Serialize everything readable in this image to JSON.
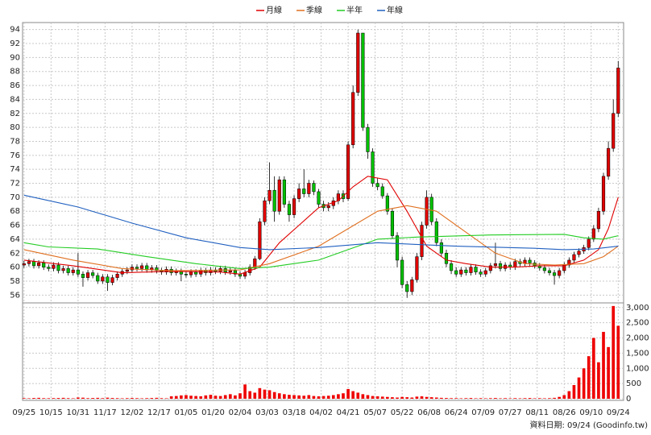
{
  "chart_data": {
    "type": "candlestick",
    "xlim": [
      -0.3,
      122.1
    ],
    "xticks": [
      {
        "value": 0,
        "label": "09/25"
      },
      {
        "value": 5.5,
        "label": "10/15"
      },
      {
        "value": 11,
        "label": "10/31"
      },
      {
        "value": 16.5,
        "label": "11/17"
      },
      {
        "value": 22,
        "label": "12/02"
      },
      {
        "value": 27.5,
        "label": "12/17"
      },
      {
        "value": 33,
        "label": "01/05"
      },
      {
        "value": 38.5,
        "label": "01/20"
      },
      {
        "value": 44,
        "label": "02/04"
      },
      {
        "value": 49.5,
        "label": "03/03"
      },
      {
        "value": 55,
        "label": "03/18"
      },
      {
        "value": 60.5,
        "label": "04/02"
      },
      {
        "value": 66,
        "label": "04/21"
      },
      {
        "value": 71.5,
        "label": "05/07"
      },
      {
        "value": 77,
        "label": "05/22"
      },
      {
        "value": 82.5,
        "label": "06/08"
      },
      {
        "value": 88,
        "label": "06/24"
      },
      {
        "value": 93.5,
        "label": "07/09"
      },
      {
        "value": 99,
        "label": "07/27"
      },
      {
        "value": 104.5,
        "label": "08/11"
      },
      {
        "value": 110,
        "label": "08/26"
      },
      {
        "value": 115.5,
        "label": "09/10"
      },
      {
        "value": 121,
        "label": "09/24"
      }
    ],
    "ylim": [
      55,
      95
    ],
    "yticks": [
      56,
      58,
      60,
      62,
      64,
      66,
      68,
      70,
      72,
      74,
      76,
      78,
      80,
      82,
      84,
      86,
      88,
      90,
      92,
      94
    ],
    "y2lim": [
      0,
      3100
    ],
    "y2ticks": [
      0,
      500,
      {
        "value": 1000,
        "label": "1,000"
      },
      {
        "value": 1500,
        "label": "1,500"
      },
      {
        "value": 2000,
        "label": "2,000"
      },
      {
        "value": 2500,
        "label": "2,500"
      },
      {
        "value": 3000,
        "label": "3,000"
      }
    ],
    "grid": true,
    "up_color": "#e00000",
    "down_color": "#00c000",
    "volume_color": "#ee0000",
    "open": [
      60.3,
      60.5,
      60.8,
      60.2,
      60.6,
      60.0,
      59.8,
      60.3,
      59.5,
      59.8,
      59.2,
      59.6,
      59.0,
      58.5,
      59.2,
      58.8,
      58.0,
      58.6,
      57.8,
      58.5,
      59.0,
      59.4,
      59.6,
      60.0,
      59.8,
      60.2,
      59.6,
      59.9,
      59.5,
      59.3,
      59.7,
      59.2,
      59.4,
      59.0,
      58.9,
      59.3,
      59.0,
      59.5,
      59.2,
      59.6,
      59.4,
      59.8,
      59.3,
      59.5,
      59.0,
      58.7,
      59.2,
      60.0,
      61.2,
      66.5,
      69.5,
      71.0,
      68.0,
      72.5,
      69.0,
      67.5,
      69.8,
      71.2,
      70.5,
      72.0,
      70.8,
      69.0,
      68.5,
      68.8,
      69.5,
      70.5,
      69.8,
      77.5,
      85.0,
      93.5,
      80.0,
      76.5,
      72.0,
      71.5,
      70.2,
      68.0,
      64.5,
      61.0,
      57.5,
      56.5,
      58.2,
      61.5,
      66.0,
      70.0,
      66.5,
      63.5,
      62.0,
      60.5,
      59.5,
      59.0,
      59.6,
      59.2,
      60.0,
      59.3,
      59.0,
      59.5,
      60.2,
      60.5,
      59.8,
      60.3,
      60.0,
      60.8,
      60.5,
      61.0,
      60.6,
      60.2,
      59.9,
      59.5,
      59.2,
      58.8,
      59.5,
      60.3,
      61.0,
      61.8,
      62.3,
      62.8,
      64.0,
      65.5,
      68.0,
      73.0,
      77.0,
      82.0
    ],
    "high": [
      60.9,
      61.2,
      61.2,
      61.0,
      61.0,
      60.4,
      60.7,
      60.7,
      60.2,
      60.2,
      60.0,
      62.0,
      59.4,
      59.6,
      59.6,
      59.2,
      59.0,
      59.0,
      58.9,
      59.4,
      59.8,
      60.0,
      60.4,
      60.4,
      60.6,
      60.6,
      60.3,
      60.3,
      59.9,
      60.1,
      60.1,
      59.8,
      59.8,
      59.4,
      59.7,
      59.7,
      59.9,
      59.9,
      60.0,
      60.0,
      60.2,
      60.2,
      59.9,
      59.9,
      59.4,
      59.6,
      60.4,
      61.6,
      67.0,
      70.0,
      75.0,
      73.0,
      73.0,
      73.0,
      69.5,
      70.3,
      72.0,
      74.0,
      72.5,
      72.4,
      71.2,
      69.5,
      69.3,
      70.0,
      71.0,
      71.0,
      78.0,
      86.0,
      94.0,
      93.5,
      80.5,
      77.0,
      72.8,
      72.0,
      70.6,
      68.4,
      65.0,
      61.5,
      58.0,
      58.6,
      62.0,
      66.5,
      71.0,
      70.5,
      67.0,
      64.0,
      62.5,
      61.0,
      60.0,
      60.0,
      60.0,
      60.4,
      60.4,
      59.7,
      59.9,
      60.6,
      63.5,
      60.9,
      60.7,
      60.7,
      61.2,
      61.2,
      61.4,
      61.4,
      61.0,
      60.6,
      60.3,
      59.9,
      59.6,
      59.9,
      60.7,
      61.4,
      62.2,
      62.7,
      63.2,
      64.4,
      66.0,
      68.5,
      73.5,
      78.0,
      84.0,
      89.5
    ],
    "low": [
      59.9,
      60.1,
      59.8,
      59.8,
      59.6,
      59.4,
      59.4,
      59.1,
      59.1,
      58.8,
      58.8,
      58.6,
      57.2,
      58.1,
      58.4,
      57.6,
      57.6,
      56.6,
      57.4,
      58.1,
      58.6,
      59.0,
      59.2,
      59.4,
      59.4,
      59.2,
      59.2,
      59.1,
      58.9,
      58.9,
      58.8,
      58.8,
      58.0,
      58.5,
      58.5,
      58.6,
      58.6,
      58.8,
      58.8,
      59.0,
      59.0,
      58.9,
      58.9,
      58.6,
      58.3,
      58.3,
      58.8,
      59.6,
      61.0,
      66.0,
      69.0,
      66.5,
      67.5,
      68.5,
      66.5,
      67.0,
      69.3,
      70.0,
      70.0,
      70.3,
      68.5,
      68.0,
      68.0,
      68.3,
      69.0,
      69.3,
      69.5,
      77.0,
      84.5,
      79.5,
      75.5,
      71.5,
      71.0,
      69.8,
      67.5,
      64.0,
      60.0,
      57.0,
      55.6,
      56.0,
      57.8,
      61.0,
      65.5,
      66.0,
      63.0,
      61.5,
      60.0,
      59.0,
      58.6,
      58.6,
      58.8,
      58.8,
      58.9,
      58.6,
      58.6,
      59.1,
      59.8,
      59.4,
      59.4,
      59.6,
      59.6,
      60.1,
      60.1,
      60.2,
      59.8,
      59.5,
      59.1,
      58.8,
      57.5,
      58.4,
      59.1,
      59.9,
      60.6,
      61.4,
      61.9,
      62.4,
      63.6,
      65.0,
      67.5,
      72.5,
      76.5,
      81.5
    ],
    "close": [
      60.5,
      60.8,
      60.2,
      60.6,
      60.0,
      59.8,
      60.3,
      59.5,
      59.8,
      59.2,
      59.6,
      59.0,
      58.5,
      59.2,
      58.8,
      58.0,
      58.6,
      57.8,
      58.5,
      59.0,
      59.4,
      59.6,
      60.0,
      59.8,
      60.2,
      59.6,
      59.9,
      59.5,
      59.3,
      59.7,
      59.2,
      59.4,
      59.0,
      58.9,
      59.3,
      59.0,
      59.5,
      59.2,
      59.6,
      59.4,
      59.8,
      59.3,
      59.5,
      59.0,
      58.7,
      59.2,
      60.0,
      61.2,
      66.5,
      69.5,
      71.0,
      68.0,
      72.5,
      69.0,
      67.5,
      69.8,
      71.2,
      70.5,
      72.0,
      70.8,
      69.0,
      68.5,
      68.8,
      69.5,
      70.5,
      69.8,
      77.5,
      85.0,
      93.5,
      80.0,
      76.5,
      72.0,
      71.5,
      70.2,
      68.0,
      64.5,
      61.0,
      57.5,
      56.5,
      58.2,
      61.5,
      66.0,
      70.0,
      66.5,
      63.5,
      62.0,
      60.5,
      59.5,
      59.0,
      59.6,
      59.2,
      60.0,
      59.3,
      59.0,
      59.5,
      60.2,
      60.5,
      59.8,
      60.3,
      60.0,
      60.8,
      60.5,
      61.0,
      60.6,
      60.2,
      59.9,
      59.5,
      59.2,
      58.8,
      59.5,
      60.3,
      61.0,
      61.8,
      62.3,
      62.8,
      64.0,
      65.5,
      68.0,
      73.0,
      77.0,
      82.0,
      88.5
    ],
    "volume": [
      20,
      15,
      25,
      30,
      20,
      18,
      22,
      25,
      30,
      20,
      15,
      40,
      35,
      20,
      25,
      30,
      20,
      35,
      25,
      20,
      15,
      20,
      25,
      20,
      15,
      20,
      25,
      30,
      20,
      15,
      80,
      90,
      110,
      120,
      100,
      90,
      80,
      110,
      130,
      100,
      90,
      120,
      150,
      110,
      180,
      470,
      250,
      200,
      350,
      300,
      280,
      220,
      180,
      150,
      130,
      120,
      110,
      100,
      120,
      90,
      80,
      90,
      100,
      120,
      150,
      180,
      320,
      250,
      200,
      150,
      120,
      90,
      80,
      70,
      60,
      50,
      40,
      60,
      50,
      40,
      70,
      80,
      60,
      50,
      40,
      30,
      25,
      20,
      20,
      15,
      20,
      25,
      15,
      20,
      15,
      20,
      25,
      15,
      20,
      15,
      20,
      15,
      20,
      25,
      15,
      20,
      15,
      20,
      30,
      60,
      120,
      250,
      450,
      700,
      1000,
      1400,
      2000,
      1200,
      2200,
      1700,
      3050,
      2400
    ],
    "moving_averages": [
      {
        "name": "月線",
        "color": "#e00000",
        "x": [
          0,
          10,
          20,
          30,
          40,
          44,
          48,
          52,
          56,
          60,
          64,
          67,
          70,
          74,
          78,
          82,
          86,
          90,
          95,
          100,
          105,
          110,
          114,
          117,
          119,
          121
        ],
        "values": [
          61,
          60.2,
          59.2,
          59.4,
          59.3,
          59.0,
          60.0,
          63.5,
          66.0,
          68.5,
          69.5,
          71.5,
          73.0,
          72.5,
          68.0,
          63.0,
          61.0,
          60.5,
          60.0,
          60.0,
          60.2,
          60.2,
          61.0,
          62.5,
          65.5,
          70.0
        ]
      },
      {
        "name": "季線",
        "color": "#e07020",
        "x": [
          0,
          10,
          20,
          30,
          44,
          50,
          60,
          66,
          72,
          78,
          84,
          90,
          96,
          102,
          108,
          114,
          118,
          121
        ],
        "values": [
          62.5,
          61.0,
          59.8,
          59.5,
          59.6,
          60.5,
          63.0,
          65.5,
          68.0,
          68.8,
          68.0,
          65.0,
          62.0,
          60.5,
          60.3,
          60.5,
          61.5,
          63.0
        ]
      },
      {
        "name": "半年",
        "color": "#22cc22",
        "x": [
          0,
          5,
          15,
          25,
          35,
          44,
          50,
          60,
          66,
          72,
          80,
          95,
          110,
          114,
          118,
          121
        ],
        "values": [
          63.5,
          62.9,
          62.6,
          61.5,
          60.5,
          59.8,
          60.0,
          61.0,
          62.5,
          64.0,
          64.3,
          64.6,
          64.7,
          64.2,
          64.0,
          64.5
        ]
      },
      {
        "name": "年線",
        "color": "#2060c0",
        "x": [
          0,
          11,
          22,
          33,
          44,
          50,
          60,
          72,
          88,
          104,
          110,
          116,
          121
        ],
        "values": [
          70.3,
          68.6,
          66.3,
          64.2,
          62.8,
          62.5,
          62.8,
          63.5,
          63.0,
          62.7,
          62.5,
          62.6,
          63.0
        ]
      }
    ],
    "annotation": "資料日期: 09/24 (Goodinfo.tw)"
  }
}
